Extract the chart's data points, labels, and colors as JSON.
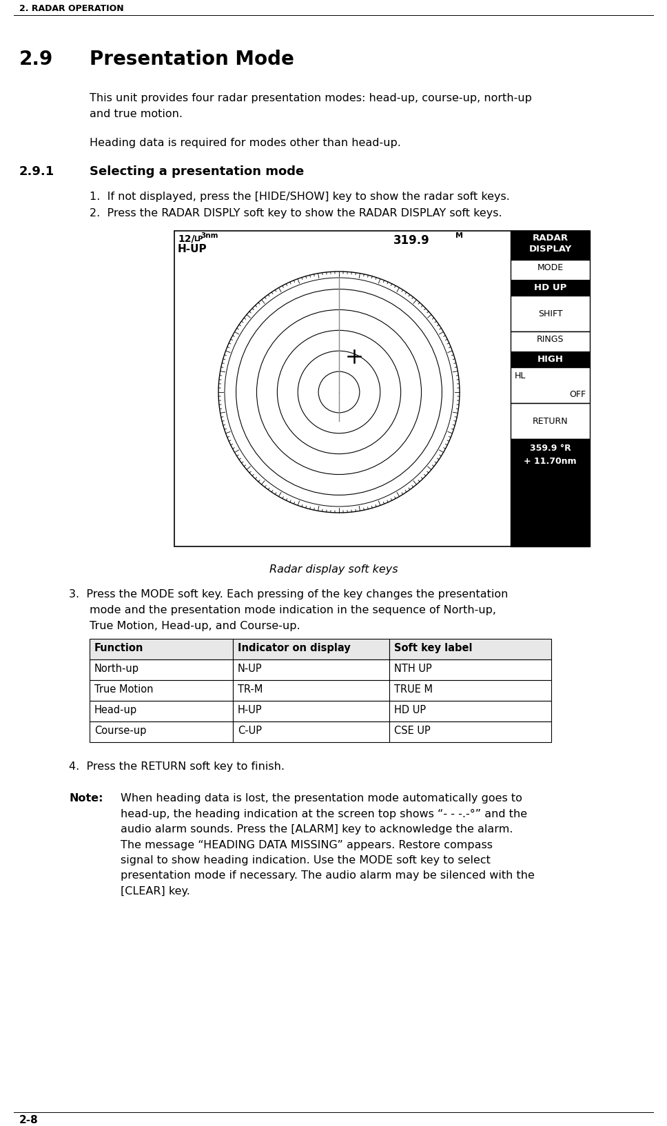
{
  "page_header": "2. RADAR OPERATION",
  "page_footer": "2-8",
  "section_num": "2.9",
  "section_title": "Presentation Mode",
  "body1_line1": "This unit provides four radar presentation modes: head-up, course-up, north-up",
  "body1_line2": "and true motion.",
  "body2": "Heading data is required for modes other than head-up.",
  "subsection_num": "2.9.1",
  "subsection_title": "Selecting a presentation mode",
  "step1": "1.  If not displayed, press the [HIDE/SHOW] key to show the radar soft keys.",
  "step2": "2.  Press the RADAR DISPLY soft key to show the RADAR DISPLAY soft keys.",
  "figure_caption": "Radar display soft keys",
  "step3_intro": "3.  Press the MODE soft key. Each pressing of the key changes the presentation",
  "step3_line2": "mode and the presentation mode indication in the sequence of North-up,",
  "step3_line3": "True Motion, Head-up, and Course-up.",
  "table_headers": [
    "Function",
    "Indicator on display",
    "Soft key label"
  ],
  "table_rows": [
    [
      "North-up",
      "N-UP",
      "NTH UP"
    ],
    [
      "True Motion",
      "TR-M",
      "TRUE M"
    ],
    [
      "Head-up",
      "H-UP",
      "HD UP"
    ],
    [
      "Course-up",
      "C-UP",
      "CSE UP"
    ]
  ],
  "step4": "4.  Press the RETURN soft key to finish.",
  "note_label": "Note:",
  "note_lines": [
    "When heading data is lost, the presentation mode automatically goes to",
    "head-up, the heading indication at the screen top shows “- - -.-°” and the",
    "audio alarm sounds. Press the [ALARM] key to acknowledge the alarm.",
    "The message “HEADING DATA MISSING” appears. Restore compass",
    "signal to show heading indication. Use the MODE soft key to select",
    "presentation mode if necessary. The audio alarm may be silenced with the",
    "[CLEAR] key."
  ],
  "radar_tl_main": "12/",
  "radar_tl_sub": "LP",
  "radar_tl_nm": "3nm",
  "radar_tl_mode": "H-UP",
  "radar_tr": "319.9",
  "radar_tr_sup": "M",
  "softkey_title": "RADAR\nDISPLAY",
  "sk1_top": "MODE",
  "sk1_bot": "HD UP",
  "sk2": "SHIFT",
  "sk3_top": "RINGS",
  "sk3_bot": "HIGH",
  "sk4_top": "HL",
  "sk4_bot": "OFF",
  "sk5": "RETURN",
  "sk_bottom1": "359.9 °R",
  "sk_bottom2": "+ 11.70nm",
  "bg": "#ffffff",
  "black": "#000000",
  "gray": "#888888"
}
